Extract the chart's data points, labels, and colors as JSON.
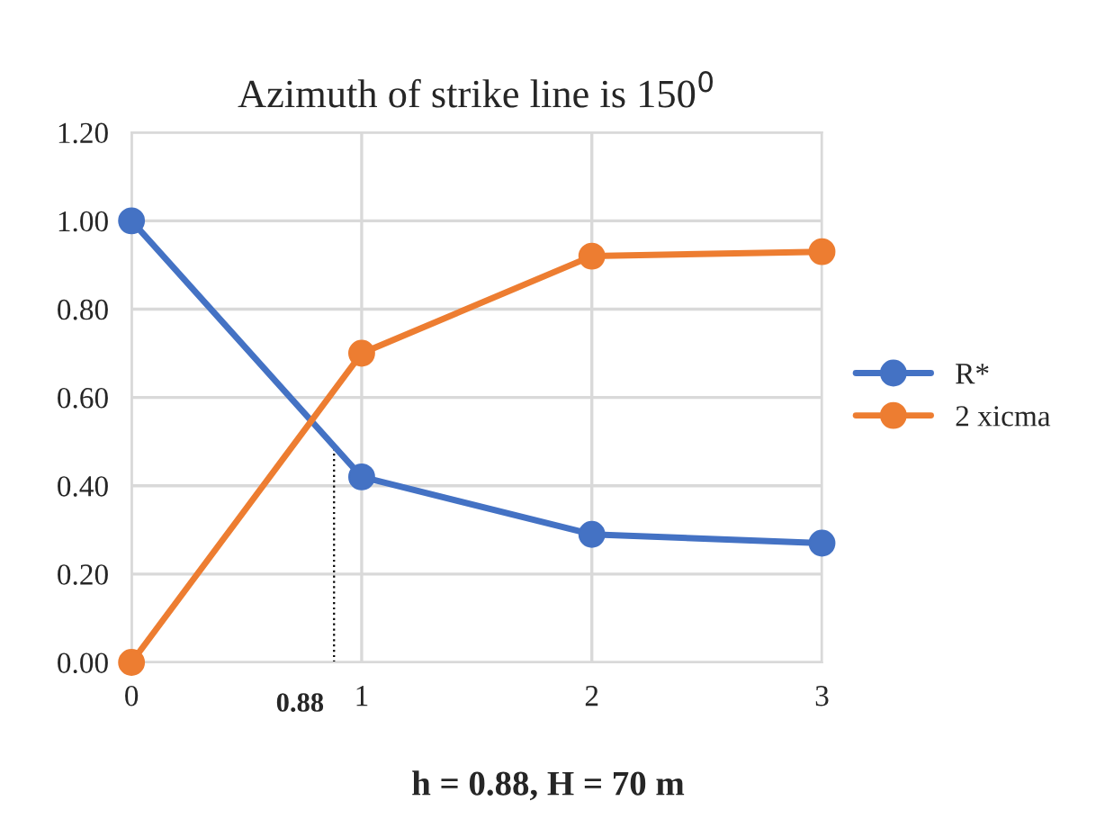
{
  "chart_data": {
    "type": "line",
    "title": "Azimuth of strike line is 150$^{0}$",
    "x": [
      0,
      1,
      2,
      3
    ],
    "series": [
      {
        "name": "R*",
        "color": "#4472c4",
        "values": [
          1.0,
          0.42,
          0.29,
          0.27
        ]
      },
      {
        "name": "2 xicma",
        "color": "#ed7d31",
        "values": [
          0.0,
          0.7,
          0.92,
          0.93
        ]
      }
    ],
    "xlim": [
      0,
      3
    ],
    "xticks": [
      0,
      1,
      2,
      3
    ],
    "ylim": [
      0,
      1.2
    ],
    "yticks": [
      {
        "value": 0,
        "label": "0.00"
      },
      {
        "value": 0.2,
        "label": "0.20"
      },
      {
        "value": 0.4,
        "label": "0.40"
      },
      {
        "value": 0.6,
        "label": "0.60"
      },
      {
        "value": 0.8,
        "label": "0.80"
      },
      {
        "value": 1.0,
        "label": "1.00"
      },
      {
        "value": 1.2,
        "label": "1.20"
      }
    ],
    "ref_lines": [
      {
        "axis": "x",
        "value": 0.88,
        "label": "0.88",
        "line_style": "dotted",
        "color": "#000000"
      }
    ],
    "annotations": [
      "h = 0.88, H = 70 m"
    ],
    "grid": true,
    "legend": "right",
    "marker": "circle",
    "line_style": "solid"
  }
}
